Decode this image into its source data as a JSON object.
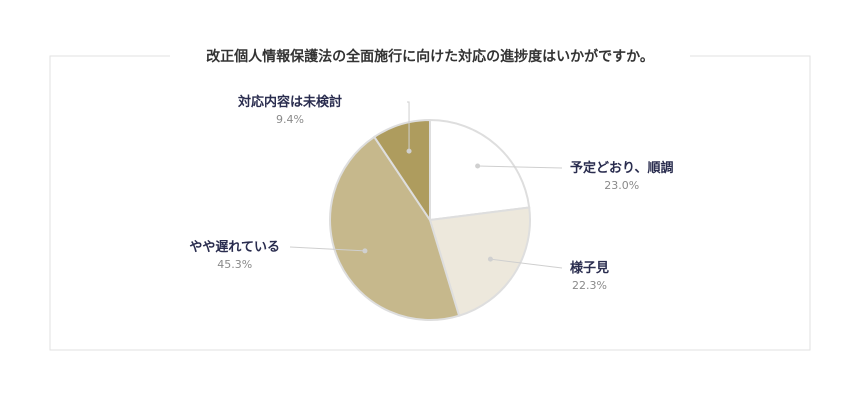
{
  "chart_data": {
    "type": "pie",
    "title": "改正個人情報保護法の全面施行に向けた対応の進捗度はいかがですか。",
    "slices": [
      {
        "label": "予定どおり、順調",
        "value": 23.0,
        "value_text": "23.0%",
        "color": "#ffffff"
      },
      {
        "label": "様子見",
        "value": 22.3,
        "value_text": "22.3%",
        "color": "#ede8dc"
      },
      {
        "label": "やや遅れている",
        "value": 45.3,
        "value_text": "45.3%",
        "color": "#c6b88c"
      },
      {
        "label": "対応内容は未検討",
        "value": 9.4,
        "value_text": "9.4%",
        "color": "#ae9c5e"
      }
    ],
    "start_angle_deg": 0,
    "direction": "clockwise",
    "legend": "none"
  }
}
